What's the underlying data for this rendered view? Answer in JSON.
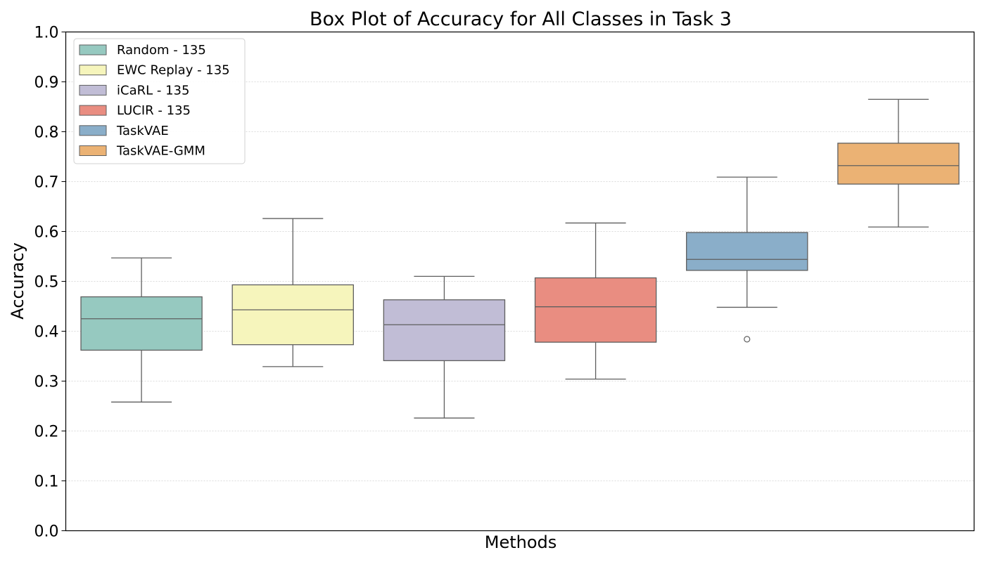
{
  "chart_data": {
    "type": "box",
    "title": "Box Plot of Accuracy for All Classes in Task 3",
    "xlabel": "Methods",
    "ylabel": "Accuracy",
    "ylim": [
      0,
      1
    ],
    "yticks": [
      "0.0",
      "0.1",
      "0.2",
      "0.3",
      "0.4",
      "0.5",
      "0.6",
      "0.7",
      "0.8",
      "0.9",
      "1.0"
    ],
    "grid": "horizontal dotted",
    "legend_position": "top-left",
    "series": [
      {
        "name": "Random - 135",
        "color": "#96c9c0",
        "whisker_low": 0.258,
        "q1": 0.362,
        "median": 0.425,
        "q3": 0.469,
        "whisker_high": 0.547,
        "outliers": []
      },
      {
        "name": "EWC Replay - 135",
        "color": "#f6f5bc",
        "whisker_low": 0.329,
        "q1": 0.373,
        "median": 0.443,
        "q3": 0.493,
        "whisker_high": 0.626,
        "outliers": []
      },
      {
        "name": "iCaRL - 135",
        "color": "#c1bdd6",
        "whisker_low": 0.226,
        "q1": 0.341,
        "median": 0.413,
        "q3": 0.463,
        "whisker_high": 0.51,
        "outliers": []
      },
      {
        "name": "LUCIR - 135",
        "color": "#e98d81",
        "whisker_low": 0.304,
        "q1": 0.378,
        "median": 0.449,
        "q3": 0.507,
        "whisker_high": 0.617,
        "outliers": []
      },
      {
        "name": "TaskVAE",
        "color": "#8aaec9",
        "whisker_low": 0.448,
        "q1": 0.522,
        "median": 0.544,
        "q3": 0.598,
        "whisker_high": 0.709,
        "outliers": [
          0.384
        ]
      },
      {
        "name": "TaskVAE-GMM",
        "color": "#ebb274",
        "whisker_low": 0.609,
        "q1": 0.695,
        "median": 0.732,
        "q3": 0.777,
        "whisker_high": 0.865,
        "outliers": []
      }
    ]
  }
}
